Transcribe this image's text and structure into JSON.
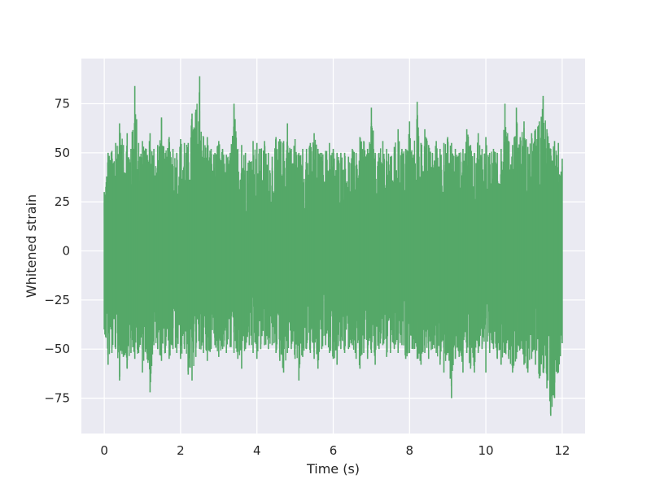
{
  "chart_data": {
    "type": "line",
    "title": "",
    "xlabel": "Time (s)",
    "ylabel": "Whitened strain",
    "xlim": [
      -0.6,
      12.6
    ],
    "ylim": [
      -93,
      98
    ],
    "xticks": [
      0,
      2,
      4,
      6,
      8,
      10,
      12
    ],
    "yticks": [
      -75,
      -50,
      -25,
      0,
      25,
      50,
      75
    ],
    "xtick_labels": [
      "0",
      "2",
      "4",
      "6",
      "8",
      "10",
      "12"
    ],
    "ytick_labels": [
      "−75",
      "−50",
      "−25",
      "0",
      "25",
      "50",
      "75"
    ],
    "grid": true,
    "colors": {
      "background": "#eaeaf2",
      "grid": "#ffffff",
      "line": "#55a868"
    },
    "series": [
      {
        "x": [
          0.0,
          0.1,
          0.2,
          0.3,
          0.4,
          0.5,
          0.6,
          0.7,
          0.8,
          0.9,
          1.0,
          1.1,
          1.2,
          1.3,
          1.4,
          1.5,
          1.6,
          1.7,
          1.8,
          1.9,
          2.0,
          2.1,
          2.2,
          2.3,
          2.4,
          2.5,
          2.6,
          2.7,
          2.8,
          2.9,
          3.0,
          3.1,
          3.2,
          3.3,
          3.4,
          3.5,
          3.6,
          3.7,
          3.8,
          3.9,
          4.0,
          4.1,
          4.2,
          4.3,
          4.4,
          4.5,
          4.6,
          4.7,
          4.8,
          4.9,
          5.0,
          5.1,
          5.2,
          5.3,
          5.4,
          5.5,
          5.6,
          5.7,
          5.8,
          5.9,
          6.0,
          6.1,
          6.2,
          6.3,
          6.4,
          6.5,
          6.6,
          6.7,
          6.8,
          6.9,
          7.0,
          7.1,
          7.2,
          7.3,
          7.4,
          7.5,
          7.6,
          7.7,
          7.8,
          7.9,
          8.0,
          8.1,
          8.2,
          8.3,
          8.4,
          8.5,
          8.6,
          8.7,
          8.8,
          8.9,
          9.0,
          9.1,
          9.2,
          9.3,
          9.4,
          9.5,
          9.6,
          9.7,
          9.8,
          9.9,
          10.0,
          10.1,
          10.2,
          10.3,
          10.4,
          10.5,
          10.6,
          10.7,
          10.8,
          10.9,
          11.0,
          11.1,
          11.2,
          11.3,
          11.4,
          11.5,
          11.6,
          11.7,
          11.8,
          11.9,
          12.0
        ],
        "upper": [
          30,
          50,
          51,
          55,
          65,
          54,
          60,
          52,
          84,
          55,
          56,
          52,
          60,
          52,
          54,
          68,
          50,
          58,
          52,
          50,
          57,
          55,
          55,
          70,
          72,
          89,
          58,
          58,
          52,
          50,
          56,
          52,
          49,
          50,
          75,
          52,
          54,
          50,
          46,
          56,
          55,
          52,
          56,
          50,
          48,
          58,
          57,
          56,
          65,
          52,
          57,
          50,
          52,
          52,
          55,
          60,
          52,
          50,
          51,
          55,
          52,
          50,
          50,
          50,
          48,
          52,
          50,
          58,
          56,
          52,
          73,
          50,
          50,
          56,
          52,
          48,
          53,
          62,
          52,
          52,
          66,
          49,
          76,
          55,
          62,
          54,
          50,
          56,
          52,
          55,
          58,
          55,
          52,
          50,
          52,
          62,
          54,
          50,
          60,
          52,
          58,
          50,
          52,
          50,
          52,
          75,
          56,
          54,
          73,
          58,
          66,
          53,
          60,
          62,
          66,
          79,
          62,
          52,
          56,
          55,
          47
        ],
        "lower": [
          -40,
          -58,
          -52,
          -50,
          -66,
          -54,
          -60,
          -52,
          -55,
          -52,
          -62,
          -50,
          -72,
          -48,
          -50,
          -56,
          -52,
          -55,
          -50,
          -52,
          -55,
          -50,
          -63,
          -66,
          -54,
          -50,
          -52,
          -56,
          -50,
          -48,
          -54,
          -50,
          -52,
          -49,
          -52,
          -55,
          -60,
          -50,
          -48,
          -52,
          -55,
          -50,
          -48,
          -50,
          -48,
          -52,
          -56,
          -62,
          -52,
          -50,
          -55,
          -66,
          -54,
          -50,
          -52,
          -55,
          -60,
          -50,
          -48,
          -52,
          -55,
          -58,
          -50,
          -52,
          -50,
          -48,
          -55,
          -60,
          -52,
          -55,
          -52,
          -58,
          -50,
          -48,
          -54,
          -52,
          -50,
          -52,
          -48,
          -55,
          -52,
          -50,
          -55,
          -58,
          -52,
          -55,
          -50,
          -52,
          -58,
          -62,
          -52,
          -75,
          -55,
          -54,
          -62,
          -52,
          -60,
          -62,
          -52,
          -50,
          -62,
          -52,
          -50,
          -55,
          -58,
          -52,
          -55,
          -62,
          -55,
          -50,
          -58,
          -62,
          -55,
          -58,
          -65,
          -62,
          -70,
          -84,
          -75,
          -62,
          -47
        ]
      }
    ]
  }
}
